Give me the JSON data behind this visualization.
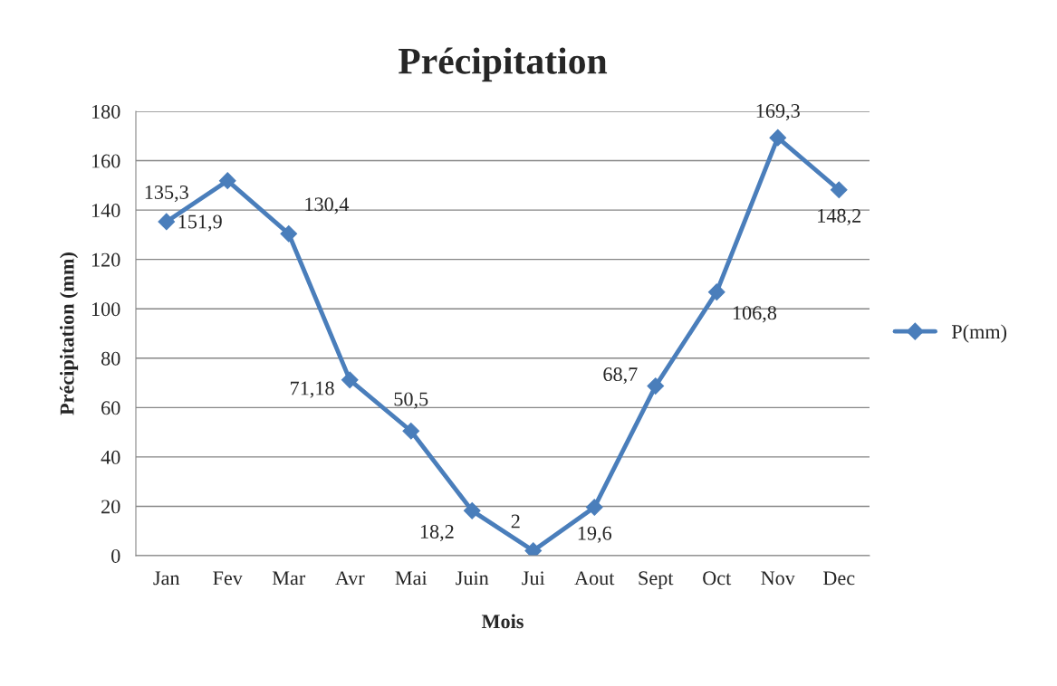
{
  "chart_data": {
    "type": "line",
    "title": "Précipitation",
    "xlabel": "Mois",
    "ylabel": "Précipitation (mm)",
    "categories": [
      "Jan",
      "Fev",
      "Mar",
      "Avr",
      "Mai",
      "Juin",
      "Jui",
      "Aout",
      "Sept",
      "Oct",
      "Nov",
      "Dec"
    ],
    "series": [
      {
        "name": "P(mm)",
        "color": "#4a7ebb",
        "values": [
          135.3,
          151.9,
          130.4,
          71.18,
          50.5,
          18.2,
          2,
          19.6,
          68.7,
          106.8,
          169.3,
          148.2
        ],
        "value_labels": [
          "135,3",
          "151,9",
          "130,4",
          "71,18",
          "50,5",
          "18,2",
          "2",
          "19,6",
          "68,7",
          "106,8",
          "169,3",
          "148,2"
        ]
      }
    ],
    "ylim": [
      0,
      180
    ],
    "yticks": [
      0,
      20,
      40,
      60,
      80,
      100,
      120,
      140,
      160,
      180
    ],
    "grid": "y",
    "legend": "right",
    "marker": "diamond",
    "line_style": "solid"
  }
}
